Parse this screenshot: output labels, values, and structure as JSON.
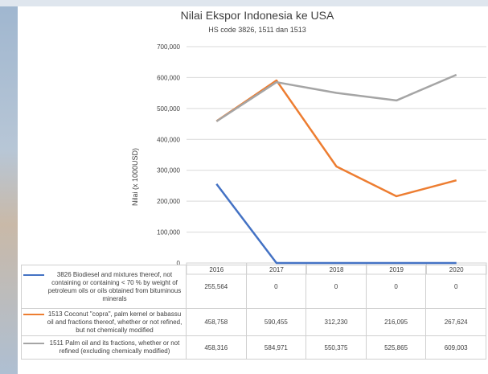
{
  "chart_data": {
    "type": "line",
    "title": "Nilai Ekspor Indonesia ke USA",
    "subtitle": "HS code 3826, 1511 dan 1513",
    "xlabel": "",
    "ylabel": "Nilai (x 1000USD)",
    "ylim": [
      0,
      700000
    ],
    "y_ticks": [
      "700,000",
      "600,000",
      "500,000",
      "400,000",
      "300,000",
      "200,000",
      "100,000",
      "0"
    ],
    "categories": [
      "2016",
      "2017",
      "2018",
      "2019",
      "2020"
    ],
    "grid": "horizontal",
    "legend": "data-table",
    "series": [
      {
        "name": "3826 Biodiesel and mixtures thereof, not containing or containing < 70 % by weight of petroleum oils or oils obtained from bituminous minerals",
        "color": "#4472c4",
        "values": [
          255564,
          0,
          0,
          0,
          0
        ],
        "labels": [
          "255,564",
          "0",
          "0",
          "0",
          "0"
        ]
      },
      {
        "name": "1513 Coconut \"copra\", palm kernel or babassu oil and fractions thereof, whether or not refined, but not chemically modified",
        "color": "#ed7d31",
        "values": [
          458758,
          590455,
          312230,
          216095,
          267624
        ],
        "labels": [
          "458,758",
          "590,455",
          "312,230",
          "216,095",
          "267,624"
        ]
      },
      {
        "name": "1511 Palm oil and its fractions, whether or not refined (excluding chemically modified)",
        "color": "#a5a5a5",
        "values": [
          458316,
          584971,
          550375,
          525865,
          609003
        ],
        "labels": [
          "458,316",
          "584,971",
          "550,375",
          "525,865",
          "609,003"
        ]
      }
    ]
  }
}
